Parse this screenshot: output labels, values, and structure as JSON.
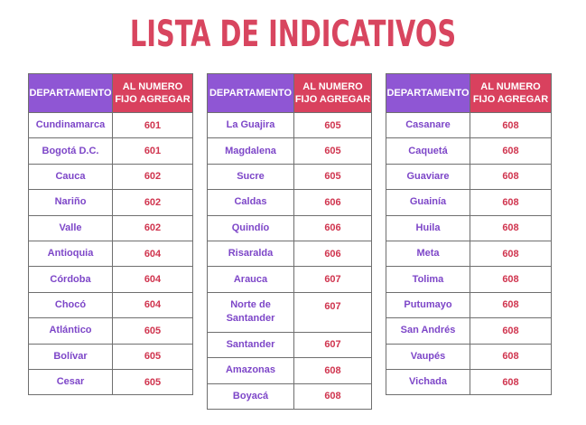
{
  "title": "LISTA DE INDICATIVOS",
  "header": {
    "departamento": "DEPARTAMENTO",
    "numero_line1": "AL NUMERO",
    "numero_line2": "FIJO AGREGAR"
  },
  "tables": [
    {
      "rows": [
        {
          "dep": "Cundinamarca",
          "code": "601"
        },
        {
          "dep": "Bogotá D.C.",
          "code": "601"
        },
        {
          "dep": "Cauca",
          "code": "602"
        },
        {
          "dep": "Nariño",
          "code": "602"
        },
        {
          "dep": "Valle",
          "code": "602"
        },
        {
          "dep": "Antioquia",
          "code": "604"
        },
        {
          "dep": "Córdoba",
          "code": "604"
        },
        {
          "dep": "Chocó",
          "code": "604"
        },
        {
          "dep": "Atlántico",
          "code": "605"
        },
        {
          "dep": "Bolívar",
          "code": "605"
        },
        {
          "dep": "Cesar",
          "code": "605"
        }
      ]
    },
    {
      "rows": [
        {
          "dep": "La Guajira",
          "code": "605"
        },
        {
          "dep": "Magdalena",
          "code": "605"
        },
        {
          "dep": "Sucre",
          "code": "605"
        },
        {
          "dep": "Caldas",
          "code": "606"
        },
        {
          "dep": "Quindío",
          "code": "606"
        },
        {
          "dep": "Risaralda",
          "code": "606"
        },
        {
          "dep": "Arauca",
          "code": "607"
        },
        {
          "dep_line1": "Norte de",
          "dep_line2": "Santander",
          "code": "607"
        },
        {
          "dep": "Santander",
          "code": "607"
        },
        {
          "dep": "Amazonas",
          "code": "608"
        },
        {
          "dep": "Boyacá",
          "code": "608"
        }
      ]
    },
    {
      "rows": [
        {
          "dep": "Casanare",
          "code": "608"
        },
        {
          "dep": "Caquetá",
          "code": "608"
        },
        {
          "dep": "Guaviare",
          "code": "608"
        },
        {
          "dep": "Guainía",
          "code": "608"
        },
        {
          "dep": "Huila",
          "code": "608"
        },
        {
          "dep": "Meta",
          "code": "608"
        },
        {
          "dep": "Tolima",
          "code": "608"
        },
        {
          "dep": "Putumayo",
          "code": "608"
        },
        {
          "dep": "San Andrés",
          "code": "608"
        },
        {
          "dep": "Vaupés",
          "code": "608"
        },
        {
          "dep": "Vichada",
          "code": "608"
        }
      ]
    }
  ]
}
